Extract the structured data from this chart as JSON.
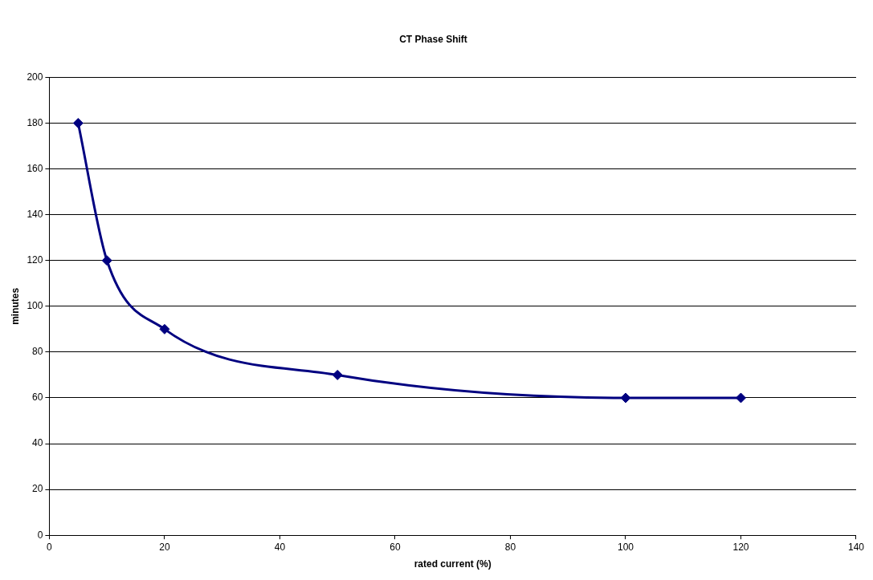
{
  "chart_data": {
    "type": "line",
    "title": "CT Phase Shift",
    "xlabel": "rated current (%)",
    "ylabel": "minutes",
    "x": [
      5,
      10,
      20,
      50,
      100,
      120
    ],
    "series": [
      {
        "color": "#000080",
        "values": [
          180,
          120,
          90,
          70,
          60,
          60
        ]
      }
    ],
    "xlim": [
      0,
      140
    ],
    "xticks": [
      0,
      20,
      40,
      60,
      80,
      100,
      120,
      140
    ],
    "ylim": [
      0,
      200
    ],
    "yticks": [
      0,
      20,
      40,
      60,
      80,
      100,
      120,
      140,
      160,
      180,
      200
    ],
    "grid": "y",
    "legend": false,
    "marker": "diamond",
    "line_style": "solid"
  }
}
